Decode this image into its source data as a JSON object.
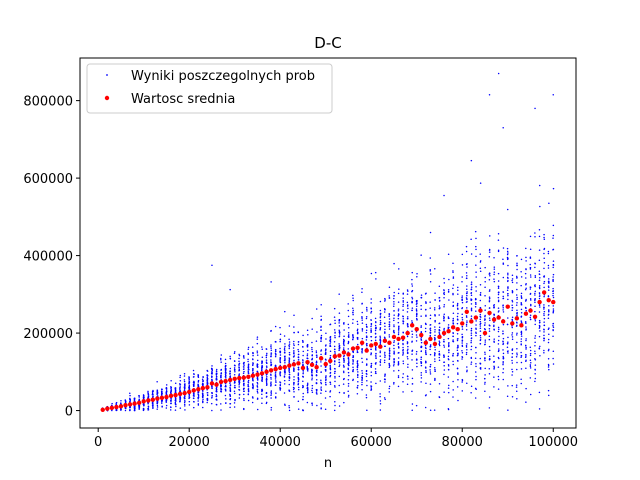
{
  "chart_data": {
    "type": "scatter",
    "title": "D-C",
    "xlabel": "n",
    "ylabel": "",
    "xlim": [
      -4000,
      105000
    ],
    "ylim": [
      -45000,
      910000
    ],
    "xticks": [
      0,
      20000,
      40000,
      60000,
      80000,
      100000
    ],
    "yticks": [
      0,
      200000,
      400000,
      600000,
      800000
    ],
    "grid": false,
    "legend_position": "top-left",
    "series": [
      {
        "name": "Wyniki poszczegolnych prob",
        "marker": "small-dot",
        "color": "#0000ff",
        "description_points": "individual trial results, ~100 trials per n, spreading wider as n grows",
        "notable_outliers": [
          {
            "x": 25000,
            "y": 375000
          },
          {
            "x": 29000,
            "y": 312000
          },
          {
            "x": 38000,
            "y": 332000
          },
          {
            "x": 76000,
            "y": 555000
          },
          {
            "x": 82000,
            "y": 645000
          },
          {
            "x": 86000,
            "y": 815000
          },
          {
            "x": 88000,
            "y": 870000
          },
          {
            "x": 89000,
            "y": 730000
          },
          {
            "x": 96000,
            "y": 780000
          },
          {
            "x": 100000,
            "y": 815000
          }
        ]
      },
      {
        "name": "Wartosc srednia",
        "marker": "dot",
        "color": "#ff0000",
        "x": [
          1000,
          2000,
          3000,
          4000,
          5000,
          6000,
          7000,
          8000,
          9000,
          10000,
          11000,
          12000,
          13000,
          14000,
          15000,
          16000,
          17000,
          18000,
          19000,
          20000,
          21000,
          22000,
          23000,
          24000,
          25000,
          26000,
          27000,
          28000,
          29000,
          30000,
          31000,
          32000,
          33000,
          34000,
          35000,
          36000,
          37000,
          38000,
          39000,
          40000,
          41000,
          42000,
          43000,
          44000,
          45000,
          46000,
          47000,
          48000,
          49000,
          50000,
          51000,
          52000,
          53000,
          54000,
          55000,
          56000,
          57000,
          58000,
          59000,
          60000,
          61000,
          62000,
          63000,
          64000,
          65000,
          66000,
          67000,
          68000,
          69000,
          70000,
          71000,
          72000,
          73000,
          74000,
          75000,
          76000,
          77000,
          78000,
          79000,
          80000,
          81000,
          82000,
          83000,
          84000,
          85000,
          86000,
          87000,
          88000,
          89000,
          90000,
          91000,
          92000,
          93000,
          94000,
          95000,
          96000,
          97000,
          98000,
          99000,
          100000
        ],
        "values": [
          2000,
          5000,
          7000,
          9000,
          11000,
          14000,
          16000,
          18000,
          20000,
          24000,
          26000,
          28000,
          31000,
          33000,
          35000,
          38000,
          40000,
          43000,
          45000,
          48000,
          52000,
          55000,
          58000,
          60000,
          70000,
          67000,
          74000,
          76000,
          79000,
          82000,
          84000,
          85000,
          87000,
          90000,
          93000,
          96000,
          100000,
          104000,
          107000,
          110000,
          112000,
          116000,
          119000,
          122000,
          110000,
          125000,
          118000,
          112000,
          135000,
          120000,
          128000,
          140000,
          142000,
          150000,
          145000,
          160000,
          162000,
          175000,
          155000,
          168000,
          172000,
          165000,
          180000,
          175000,
          190000,
          185000,
          188000,
          200000,
          220000,
          210000,
          195000,
          175000,
          185000,
          172000,
          190000,
          200000,
          205000,
          215000,
          210000,
          225000,
          255000,
          230000,
          240000,
          258000,
          200000,
          252000,
          235000,
          240000,
          230000,
          268000,
          225000,
          238000,
          220000,
          250000,
          258000,
          242000,
          280000,
          305000,
          285000,
          280000
        ]
      }
    ]
  }
}
